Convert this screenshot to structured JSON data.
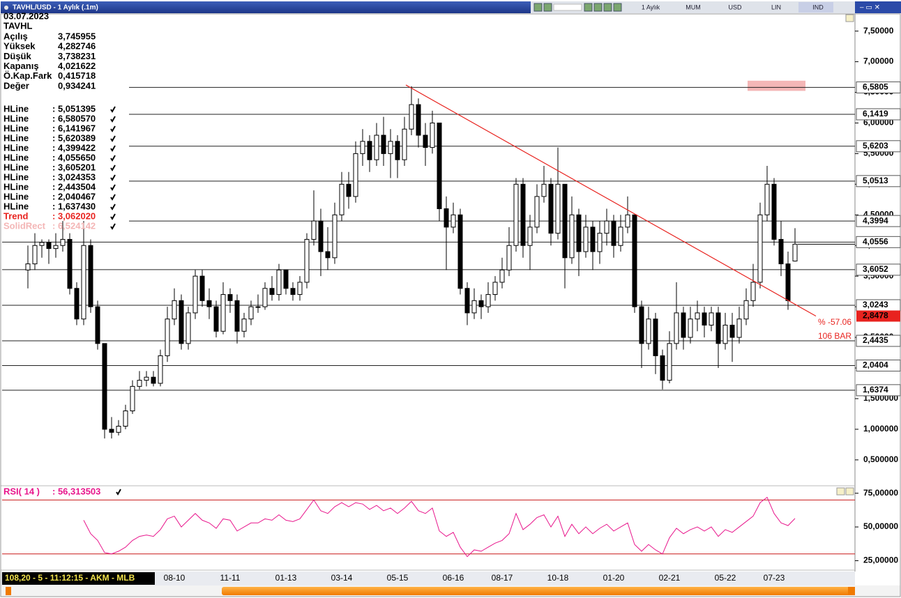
{
  "window": {
    "title": "TAVHL/USD - 1 Aylık (.1m)",
    "toolbar": [
      "1 Aylık",
      "MUM",
      "USD",
      "LIN",
      "IND"
    ],
    "status": "108,20 - 5 - 11:12:15 - AKM - MLB",
    "info": {
      "date": "03.07.2023",
      "symbol": "TAVHL",
      "rows": [
        [
          "Açılış",
          "3,745955"
        ],
        [
          "Yüksek",
          "4,282746"
        ],
        [
          "Düşük",
          "3,738231"
        ],
        [
          "Kapanış",
          "4,021622"
        ],
        [
          "Ö.Kap.Fark",
          "0,415718"
        ],
        [
          "Değer",
          "0,934241"
        ]
      ]
    }
  },
  "chart_data": [
    {
      "type": "candlestick",
      "ylim": [
        0.1,
        7.78
      ],
      "yticks": [
        {
          "value": 0.5,
          "label": "0,500000"
        },
        {
          "value": 1,
          "label": "1,000000"
        },
        {
          "value": 1.5,
          "label": "1,500000"
        },
        {
          "value": 2,
          "label": "2,00000"
        },
        {
          "value": 2.5,
          "label": "2,50000"
        },
        {
          "value": 3,
          "label": "3,00000"
        },
        {
          "value": 3.5,
          "label": "3,50000"
        },
        {
          "value": 4,
          "label": "4,00000"
        },
        {
          "value": 4.5,
          "label": "4,50000"
        },
        {
          "value": 5,
          "label": "5,00000"
        },
        {
          "value": 5.5,
          "label": "5,50000"
        },
        {
          "value": 6,
          "label": "6,00000"
        },
        {
          "value": 6.5,
          "label": "6,50000"
        },
        {
          "value": 7,
          "label": "7,00000"
        },
        {
          "value": 7.5,
          "label": "7,50000"
        }
      ],
      "categories": [
        null,
        null,
        null,
        null,
        null,
        null,
        null,
        null,
        null,
        null,
        null,
        null,
        null,
        null,
        null,
        null,
        null,
        null,
        null,
        null,
        null,
        "08-10",
        null,
        null,
        null,
        null,
        null,
        null,
        null,
        "11-11",
        null,
        null,
        null,
        null,
        null,
        null,
        null,
        "01-13",
        null,
        null,
        null,
        null,
        null,
        null,
        null,
        "03-14",
        null,
        null,
        null,
        null,
        null,
        null,
        null,
        "05-15",
        null,
        null,
        null,
        null,
        null,
        null,
        null,
        "06-16",
        null,
        null,
        null,
        null,
        null,
        null,
        "08-17",
        null,
        null,
        null,
        null,
        null,
        null,
        null,
        "10-18",
        null,
        null,
        null,
        null,
        null,
        null,
        null,
        "01-20",
        null,
        null,
        null,
        null,
        null,
        null,
        null,
        "02-21",
        null,
        null,
        null,
        null,
        null,
        null,
        null,
        "05-22",
        null,
        null,
        null,
        null,
        null,
        null,
        "07-23",
        null,
        null,
        null
      ],
      "ohlc": [
        [
          3.6,
          4.0,
          3.3,
          3.7
        ],
        [
          3.7,
          4.2,
          3.6,
          4.0
        ],
        [
          4.0,
          4.1,
          3.8,
          4.05
        ],
        [
          4.05,
          4.1,
          3.7,
          3.95
        ],
        [
          3.95,
          4.2,
          3.8,
          4.0
        ],
        [
          4.0,
          4.4,
          3.9,
          4.1
        ],
        [
          4.1,
          4.2,
          3.2,
          3.3
        ],
        [
          3.3,
          3.4,
          2.7,
          2.8
        ],
        [
          2.8,
          4.4,
          2.7,
          4.0
        ],
        [
          4.0,
          4.1,
          2.9,
          3.0
        ],
        [
          3.0,
          3.1,
          2.3,
          2.4
        ],
        [
          2.4,
          2.4,
          0.85,
          1.0
        ],
        [
          1.0,
          1.2,
          0.85,
          0.95
        ],
        [
          0.95,
          1.15,
          0.9,
          1.05
        ],
        [
          1.05,
          1.4,
          1.0,
          1.3
        ],
        [
          1.3,
          1.8,
          1.25,
          1.7
        ],
        [
          1.7,
          1.95,
          1.65,
          1.8
        ],
        [
          1.8,
          1.95,
          1.7,
          1.85
        ],
        [
          1.85,
          1.95,
          1.7,
          1.75
        ],
        [
          1.75,
          2.3,
          1.7,
          2.2
        ],
        [
          2.2,
          3.0,
          2.1,
          2.8
        ],
        [
          2.8,
          3.3,
          2.7,
          3.1
        ],
        [
          3.1,
          3.2,
          2.3,
          2.4
        ],
        [
          2.4,
          3.0,
          2.3,
          2.9
        ],
        [
          2.9,
          3.6,
          2.8,
          3.5
        ],
        [
          3.5,
          3.6,
          3.0,
          3.1
        ],
        [
          3.1,
          3.3,
          2.8,
          3.0
        ],
        [
          3.0,
          3.1,
          2.5,
          2.6
        ],
        [
          2.6,
          3.4,
          2.55,
          3.2
        ],
        [
          3.2,
          3.3,
          2.9,
          3.1
        ],
        [
          3.1,
          3.2,
          2.4,
          2.6
        ],
        [
          2.6,
          2.9,
          2.5,
          2.8
        ],
        [
          2.8,
          3.1,
          2.7,
          3.0
        ],
        [
          3.0,
          3.2,
          2.9,
          3.0
        ],
        [
          3.0,
          3.4,
          2.95,
          3.3
        ],
        [
          3.3,
          3.5,
          3.1,
          3.2
        ],
        [
          3.2,
          3.7,
          3.1,
          3.6
        ],
        [
          3.6,
          3.6,
          3.2,
          3.3
        ],
        [
          3.3,
          3.4,
          3.1,
          3.2
        ],
        [
          3.2,
          3.5,
          3.1,
          3.4
        ],
        [
          3.4,
          4.2,
          3.3,
          4.1
        ],
        [
          4.1,
          4.9,
          4.0,
          4.4
        ],
        [
          4.4,
          4.6,
          3.5,
          3.9
        ],
        [
          3.9,
          4.3,
          3.6,
          3.8
        ],
        [
          3.8,
          4.7,
          3.7,
          4.5
        ],
        [
          4.5,
          5.2,
          4.4,
          5.0
        ],
        [
          5.0,
          5.2,
          4.6,
          4.8
        ],
        [
          4.8,
          5.7,
          4.7,
          5.5
        ],
        [
          5.5,
          5.9,
          5.3,
          5.7
        ],
        [
          5.7,
          5.8,
          5.2,
          5.4
        ],
        [
          5.4,
          6.0,
          5.3,
          5.8
        ],
        [
          5.8,
          6.1,
          5.3,
          5.5
        ],
        [
          5.5,
          5.9,
          5.1,
          5.7
        ],
        [
          5.7,
          5.8,
          5.1,
          5.4
        ],
        [
          5.4,
          6.1,
          5.3,
          5.9
        ],
        [
          5.9,
          6.6,
          5.8,
          6.3
        ],
        [
          6.3,
          6.4,
          5.6,
          5.8
        ],
        [
          5.8,
          6.0,
          5.3,
          5.6
        ],
        [
          5.6,
          6.2,
          5.5,
          6.0
        ],
        [
          6.0,
          6.0,
          4.4,
          4.6
        ],
        [
          4.6,
          4.8,
          3.6,
          4.3
        ],
        [
          4.3,
          4.7,
          4.2,
          4.5
        ],
        [
          4.5,
          4.6,
          3.2,
          3.3
        ],
        [
          3.3,
          3.4,
          2.7,
          2.9
        ],
        [
          2.9,
          3.3,
          2.8,
          3.1
        ],
        [
          3.1,
          3.2,
          2.8,
          3.0
        ],
        [
          3.0,
          3.4,
          2.9,
          3.2
        ],
        [
          3.2,
          3.5,
          3.1,
          3.4
        ],
        [
          3.4,
          3.8,
          3.3,
          3.6
        ],
        [
          3.6,
          4.3,
          3.5,
          4.0
        ],
        [
          4.0,
          5.1,
          3.9,
          5.0
        ],
        [
          5.0,
          5.1,
          3.8,
          4.0
        ],
        [
          4.0,
          4.5,
          3.6,
          4.3
        ],
        [
          4.3,
          5.0,
          4.2,
          4.8
        ],
        [
          4.8,
          5.3,
          4.7,
          5.0
        ],
        [
          5.0,
          5.1,
          4.0,
          4.2
        ],
        [
          4.2,
          5.6,
          4.1,
          5.0
        ],
        [
          5.0,
          5.0,
          3.3,
          3.8
        ],
        [
          3.8,
          4.8,
          3.7,
          4.5
        ],
        [
          4.5,
          4.6,
          3.5,
          3.9
        ],
        [
          3.9,
          4.5,
          3.8,
          4.3
        ],
        [
          4.3,
          4.4,
          3.6,
          3.9
        ],
        [
          3.9,
          4.4,
          3.7,
          4.2
        ],
        [
          4.2,
          4.6,
          4.0,
          4.4
        ],
        [
          4.4,
          4.5,
          3.8,
          4.0
        ],
        [
          4.0,
          4.5,
          3.9,
          4.3
        ],
        [
          4.3,
          4.8,
          4.2,
          4.5
        ],
        [
          4.5,
          4.5,
          2.9,
          3.0
        ],
        [
          3.0,
          3.1,
          2.0,
          2.4
        ],
        [
          2.4,
          3.0,
          2.3,
          2.8
        ],
        [
          2.8,
          2.9,
          1.9,
          2.2
        ],
        [
          2.2,
          2.3,
          1.65,
          1.8
        ],
        [
          1.8,
          2.6,
          1.75,
          2.4
        ],
        [
          2.4,
          3.4,
          2.3,
          2.9
        ],
        [
          2.9,
          3.0,
          2.3,
          2.5
        ],
        [
          2.5,
          3.0,
          2.4,
          2.8
        ],
        [
          2.8,
          3.1,
          2.6,
          2.9
        ],
        [
          2.9,
          3.0,
          2.5,
          2.7
        ],
        [
          2.7,
          3.0,
          2.6,
          2.9
        ],
        [
          2.9,
          3.0,
          2.0,
          2.4
        ],
        [
          2.4,
          2.9,
          2.3,
          2.7
        ],
        [
          2.7,
          2.9,
          2.1,
          2.5
        ],
        [
          2.5,
          3.0,
          2.4,
          2.8
        ],
        [
          2.8,
          3.3,
          2.7,
          3.1
        ],
        [
          3.1,
          3.7,
          3.0,
          3.4
        ],
        [
          3.4,
          4.7,
          3.3,
          4.5
        ],
        [
          4.5,
          5.3,
          4.4,
          5.0
        ],
        [
          5.0,
          5.1,
          4.0,
          4.1
        ],
        [
          4.1,
          4.4,
          3.5,
          3.7
        ],
        [
          3.7,
          3.9,
          2.95,
          3.1
        ],
        [
          3.745955,
          4.282746,
          3.738231,
          4.021622
        ]
      ],
      "hlines": [
        {
          "name": "HLine",
          "value": 5.051395,
          "legend_label": ": 5,051395",
          "axis_label": "5,0513"
        },
        {
          "name": "HLine",
          "value": 6.58057,
          "legend_label": ": 6,580570",
          "axis_label": "6,5805"
        },
        {
          "name": "HLine",
          "value": 6.141967,
          "legend_label": ": 6,141967",
          "axis_label": "6,1419"
        },
        {
          "name": "HLine",
          "value": 5.620389,
          "legend_label": ": 5,620389",
          "axis_label": "5,6203"
        },
        {
          "name": "HLine",
          "value": 4.399422,
          "legend_label": ": 4,399422",
          "axis_label": "4,3994"
        },
        {
          "name": "HLine",
          "value": 4.05565,
          "legend_label": ": 4,055650",
          "axis_label": "4,0556"
        },
        {
          "name": "HLine",
          "value": 3.605201,
          "legend_label": ": 3,605201",
          "axis_label": "3,6052"
        },
        {
          "name": "HLine",
          "value": 3.024353,
          "legend_label": ": 3,024353",
          "axis_label": "3,0243"
        },
        {
          "name": "HLine",
          "value": 2.443504,
          "legend_label": ": 2,443504",
          "axis_label": "2,4435"
        },
        {
          "name": "HLine",
          "value": 2.040467,
          "legend_label": ": 2,040467",
          "axis_label": "2,0404"
        },
        {
          "name": "HLine",
          "value": 1.63743,
          "legend_label": ": 1,637430",
          "axis_label": "1,6374"
        }
      ],
      "trend": {
        "name": "Trend",
        "value": 3.06202,
        "legend_label": ": 3,062020",
        "color": "#e8231f",
        "x": [
          54.2,
          113
        ],
        "y": [
          6.62,
          2.8478
        ],
        "axis_label": "2,8478",
        "annotations": [
          "% -57.06",
          "106 BAR"
        ]
      },
      "solid_rect": {
        "name": "SolidRect",
        "value": 6.524142,
        "legend_label": ": 6,524142",
        "color": "#f4b6b6",
        "x": [
          103.2,
          111.5
        ],
        "y": [
          6.524142,
          6.69
        ]
      }
    },
    {
      "type": "line",
      "name": "RSI( 14 )",
      "value_label": ": 56,313503",
      "color": "#e8168c",
      "ylim": [
        18,
        80
      ],
      "yticks": [
        {
          "value": 25,
          "label": "25,00000"
        },
        {
          "value": 50,
          "label": "50,00000"
        },
        {
          "value": 75,
          "label": "75,00000"
        }
      ],
      "levels": [
        30,
        70
      ],
      "level_color": "#c81818",
      "values": [
        null,
        null,
        null,
        null,
        null,
        null,
        null,
        null,
        55,
        45,
        40,
        31,
        30,
        32,
        35,
        40,
        43,
        44,
        43,
        48,
        56,
        58,
        50,
        55,
        60,
        55,
        53,
        49,
        56,
        55,
        47,
        50,
        53,
        53,
        56,
        55,
        59,
        55,
        54,
        56,
        63,
        70,
        62,
        60,
        65,
        68,
        65,
        68,
        67,
        63,
        66,
        62,
        64,
        60,
        64,
        69,
        62,
        60,
        64,
        47,
        43,
        46,
        35,
        28,
        33,
        32,
        35,
        38,
        40,
        45,
        60,
        48,
        52,
        57,
        59,
        50,
        58,
        43,
        52,
        45,
        50,
        45,
        49,
        52,
        47,
        50,
        53,
        37,
        32,
        37,
        33,
        30,
        42,
        49,
        45,
        48,
        50,
        47,
        50,
        43,
        48,
        46,
        50,
        54,
        58,
        68,
        72,
        60,
        53,
        51,
        56.313503
      ]
    }
  ]
}
